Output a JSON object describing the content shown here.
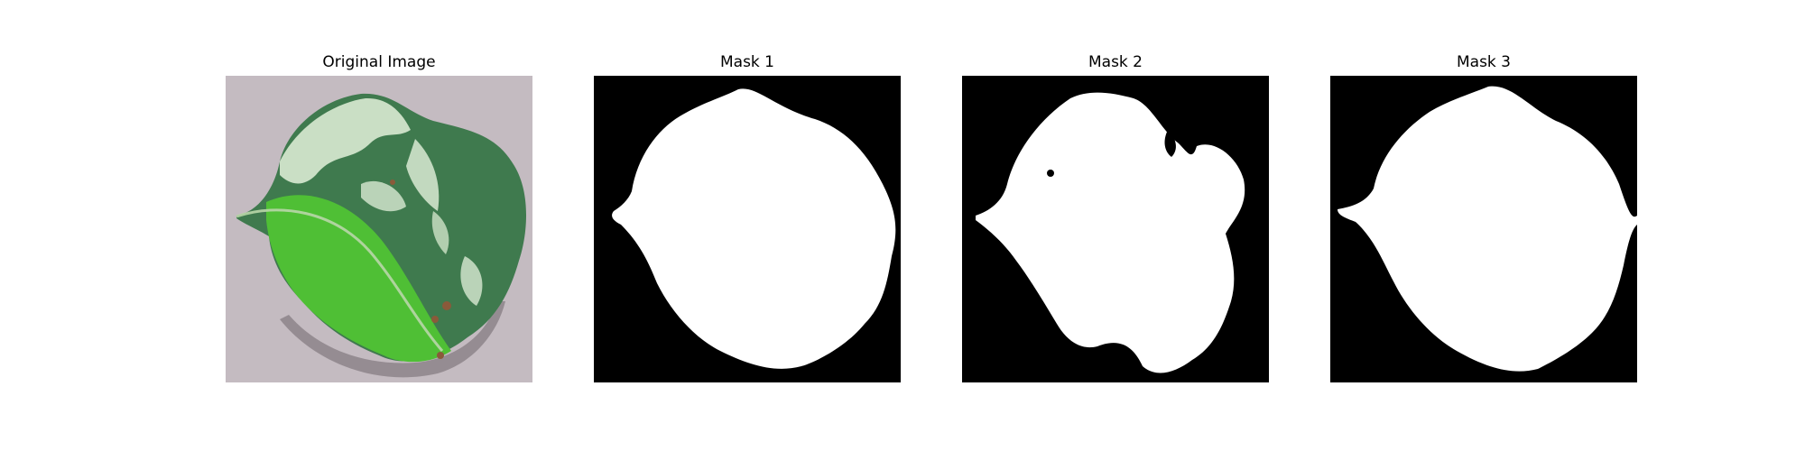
{
  "figure": {
    "panels": [
      {
        "title": "Original Image",
        "kind": "photo"
      },
      {
        "title": "Mask 1",
        "kind": "mask"
      },
      {
        "title": "Mask 2",
        "kind": "mask"
      },
      {
        "title": "Mask 3",
        "kind": "mask"
      }
    ]
  },
  "colors": {
    "mask_background": "#000000",
    "mask_foreground": "#ffffff",
    "photo_background": "#bcb3b8",
    "leaf_dark": "#3f7a4e",
    "leaf_bright": "#4fbf35",
    "leaf_pale": "#d9ead3"
  }
}
